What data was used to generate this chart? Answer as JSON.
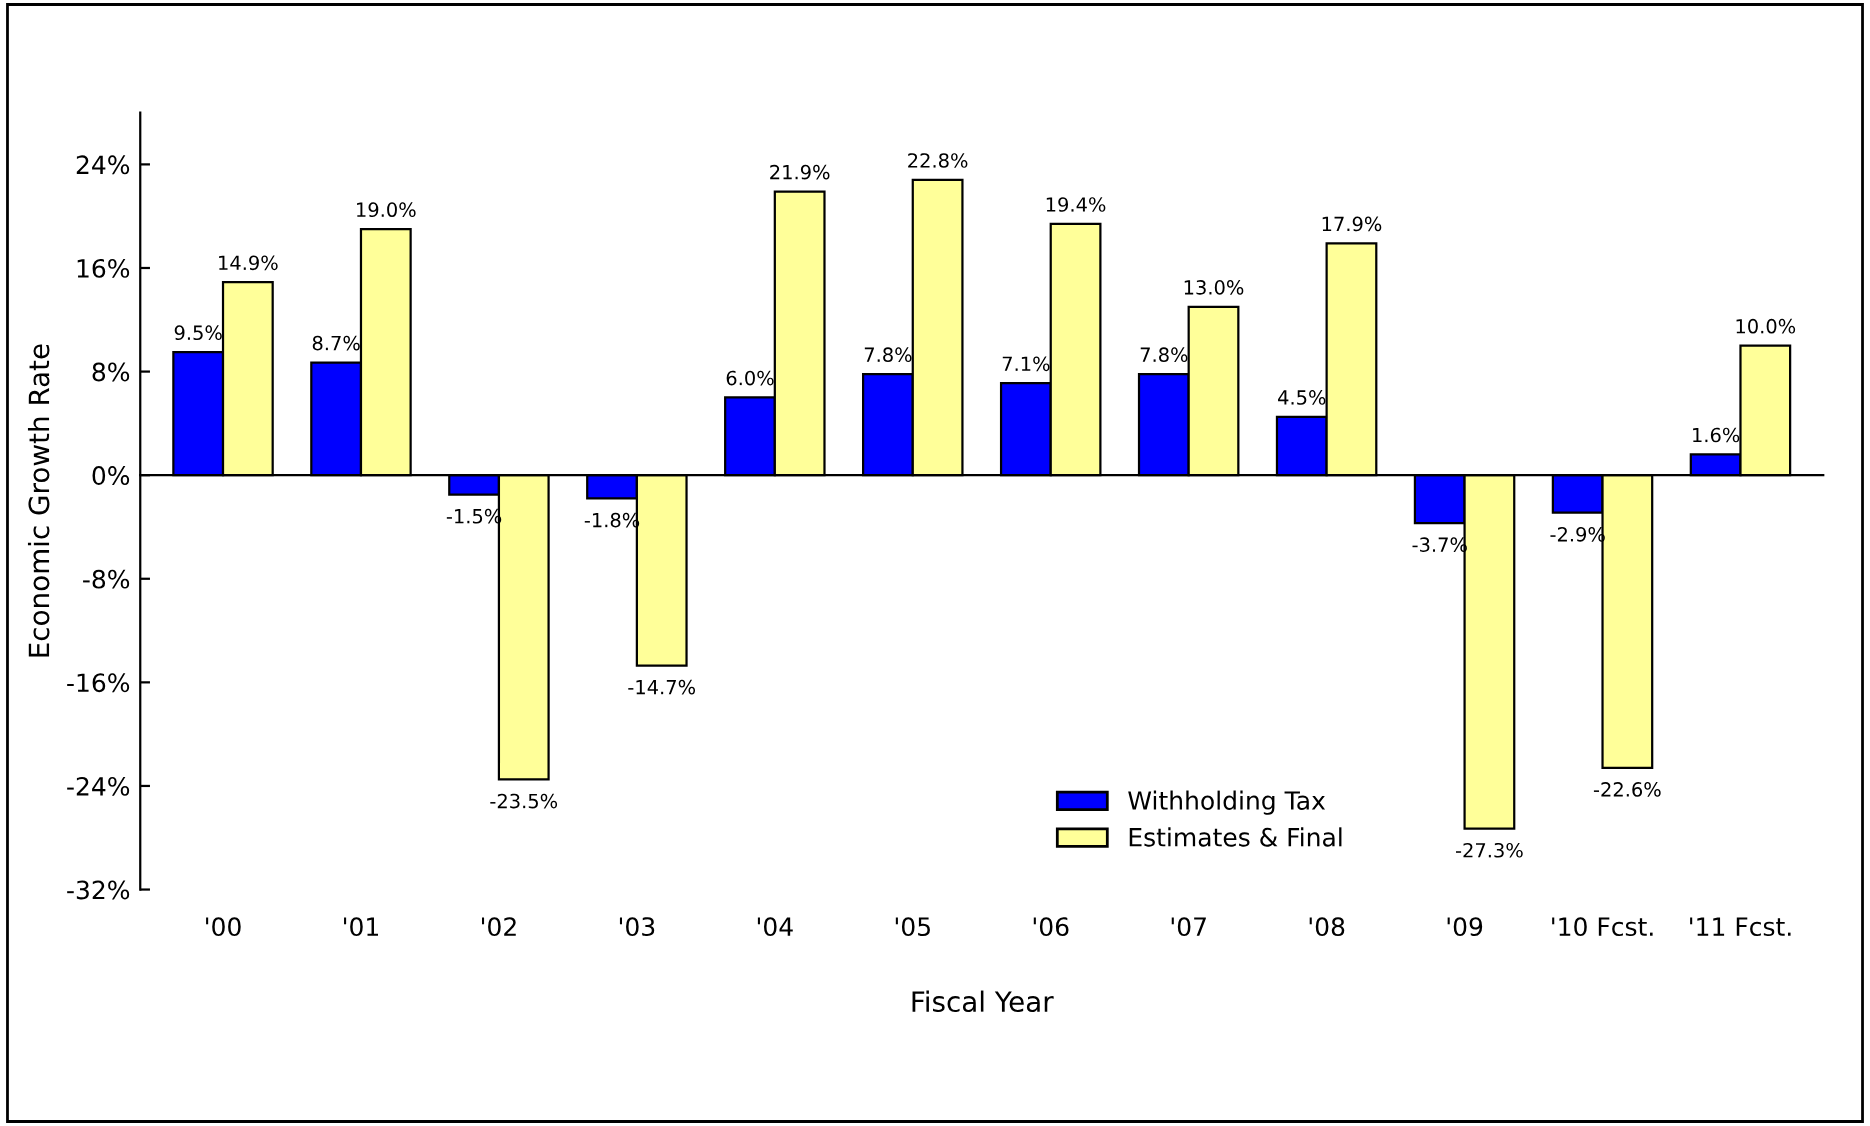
{
  "chart_data": {
    "type": "bar",
    "xlabel": "Fiscal Year",
    "ylabel": "Economic Growth Rate",
    "categories": [
      "'00",
      "'01",
      "'02",
      "'03",
      "'04",
      "'05",
      "'06",
      "'07",
      "'08",
      "'09",
      "'10 Fcst.",
      "'11 Fcst."
    ],
    "series": [
      {
        "name": "Withholding Tax",
        "color": "#0000ff",
        "values": [
          9.5,
          8.7,
          -1.5,
          -1.8,
          6.0,
          7.8,
          7.1,
          7.8,
          4.5,
          -3.7,
          -2.9,
          1.6
        ],
        "value_labels": [
          "9.5%",
          "8.7%",
          "-1.5%",
          "-1.8%",
          "6.0%",
          "7.8%",
          "7.1%",
          "7.8%",
          "4.5%",
          "-3.7%",
          "-2.9%",
          "1.6%"
        ]
      },
      {
        "name": "Estimates & Final",
        "color": "#ffff99",
        "values": [
          14.9,
          19.0,
          -23.5,
          -14.7,
          21.9,
          22.8,
          19.4,
          13.0,
          17.9,
          -27.3,
          -22.6,
          10.0
        ],
        "value_labels": [
          "14.9%",
          "19.0%",
          "-23.5%",
          "-14.7%",
          "21.9%",
          "22.8%",
          "19.4%",
          "13.0%",
          "17.9%",
          "-27.3%",
          "-22.6%",
          "10.0%"
        ]
      }
    ],
    "ylim": [
      -32,
      28
    ],
    "yticks": [
      {
        "value": -32,
        "label": "-32%"
      },
      {
        "value": -24,
        "label": "-24%"
      },
      {
        "value": -16,
        "label": "-16%"
      },
      {
        "value": -8,
        "label": "-8%"
      },
      {
        "value": 0,
        "label": "0%"
      },
      {
        "value": 8,
        "label": "8%"
      },
      {
        "value": 16,
        "label": "16%"
      },
      {
        "value": 24,
        "label": "24%"
      }
    ],
    "legend": "bottom"
  }
}
